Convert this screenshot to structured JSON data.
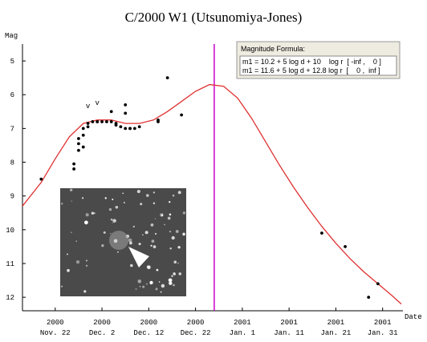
{
  "chart_data": {
    "type": "scatter",
    "title": "C/2000 W1 (Utsunomiya-Jones)",
    "y_label": "Mag",
    "x_label": "Date",
    "xlim": [
      "2000-11-15",
      "2001-02-04"
    ],
    "ylim": [
      12.4,
      4.5
    ],
    "yticks": [
      5,
      6,
      7,
      8,
      9,
      10,
      11,
      12
    ],
    "xticks": [
      {
        "value": "2000-11-22",
        "label": "2000\nNov. 22"
      },
      {
        "value": "2000-12-02",
        "label": "2000\nDec. 2"
      },
      {
        "value": "2000-12-12",
        "label": "2000\nDec. 12"
      },
      {
        "value": "2000-12-22",
        "label": "2000\nDec. 22"
      },
      {
        "value": "2001-01-01",
        "label": "2001\nJan. 1"
      },
      {
        "value": "2001-01-11",
        "label": "2001\nJan. 11"
      },
      {
        "value": "2001-01-21",
        "label": "2001\nJan. 21"
      },
      {
        "value": "2001-01-31",
        "label": "2001\nJan. 31"
      }
    ],
    "series": [
      {
        "type": "line",
        "color": "#e03030",
        "x": [
          "2000-11-15",
          "2000-11-19",
          "2000-11-22",
          "2000-11-25",
          "2000-11-28",
          "2000-12-01",
          "2000-12-04",
          "2000-12-07",
          "2000-12-10",
          "2000-12-13",
          "2000-12-16",
          "2000-12-19",
          "2000-12-22",
          "2000-12-25",
          "2000-12-28",
          "2000-12-31",
          "2001-01-03",
          "2001-01-06",
          "2001-01-09",
          "2001-01-12",
          "2001-01-15",
          "2001-01-18",
          "2001-01-21",
          "2001-01-24",
          "2001-01-27",
          "2001-01-30",
          "2001-02-02",
          "2001-02-04"
        ],
        "values": [
          9.3,
          8.6,
          7.9,
          7.25,
          6.85,
          6.75,
          6.75,
          6.85,
          6.85,
          6.75,
          6.5,
          6.2,
          5.9,
          5.7,
          5.75,
          6.1,
          6.7,
          7.4,
          8.1,
          8.75,
          9.35,
          9.9,
          10.4,
          10.85,
          11.25,
          11.6,
          11.95,
          12.2
        ]
      },
      {
        "type": "scatter",
        "color": "#000000",
        "x": [
          "2000-11-19",
          "2000-11-26",
          "2000-11-26",
          "2000-11-27",
          "2000-11-27",
          "2000-11-27",
          "2000-11-28",
          "2000-11-28",
          "2000-11-28",
          "2000-11-29",
          "2000-11-29",
          "2000-11-30",
          "2000-12-01",
          "2000-12-01",
          "2000-12-02",
          "2000-12-03",
          "2000-12-04",
          "2000-12-04",
          "2000-12-05",
          "2000-12-05",
          "2000-12-06",
          "2000-12-07",
          "2000-12-07",
          "2000-12-07",
          "2000-12-08",
          "2000-12-08",
          "2000-12-09",
          "2000-12-10",
          "2000-12-14",
          "2000-12-14",
          "2000-12-16",
          "2000-12-19",
          "2001-01-18",
          "2001-01-23",
          "2001-01-28",
          "2001-01-30"
        ],
        "values": [
          8.5,
          8.05,
          8.2,
          7.65,
          7.45,
          7.3,
          7.55,
          7.2,
          7.0,
          6.95,
          6.85,
          6.8,
          6.8,
          6.8,
          6.8,
          6.8,
          6.5,
          6.8,
          6.85,
          6.9,
          6.95,
          6.3,
          6.55,
          7.0,
          7.0,
          7.0,
          7.0,
          6.95,
          6.8,
          6.75,
          5.5,
          6.6,
          10.1,
          10.5,
          12.0,
          11.6
        ]
      }
    ],
    "annotations": [
      {
        "text": "v",
        "x": "2000-11-29",
        "y": 6.4
      },
      {
        "text": "v",
        "x": "2000-12-01",
        "y": 6.3
      }
    ],
    "vlines": [
      {
        "x": "2000-12-26",
        "color": "#cc00cc"
      }
    ],
    "formula_box": {
      "title": "Magnitude Formula:",
      "lines": [
        "m1 = 10.2 + 5 log d + 10    log r  [ -inf ,    0 ]",
        "m1 = 11.6 + 5 log d + 12.8 log r  [    0 ,  inf ]"
      ]
    }
  }
}
